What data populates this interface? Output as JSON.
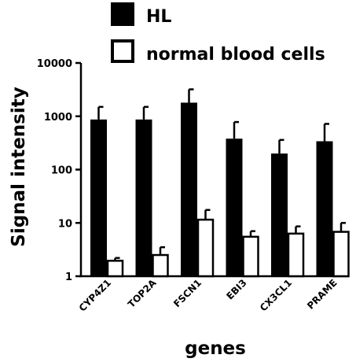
{
  "chart_data": {
    "type": "bar",
    "title": "",
    "xlabel": "genes",
    "ylabel": "Signal intensity",
    "yscale": "log",
    "ylim": [
      1,
      10000
    ],
    "y_ticks": [
      1,
      10,
      100,
      1000,
      10000
    ],
    "y_tick_labels": [
      "1",
      "10",
      "100",
      "1000",
      "10000"
    ],
    "grid": false,
    "legend_position": "top-center",
    "categories": [
      "CYP4Z1",
      "TOP2A",
      "FSCN1",
      "EBI3",
      "CX3CL1",
      "PRAME"
    ],
    "series": [
      {
        "name": "HL",
        "color": "#000000",
        "values": [
          870,
          870,
          1800,
          380,
          200,
          340
        ],
        "error_upper": [
          1500,
          1500,
          3200,
          780,
          360,
          720
        ]
      },
      {
        "name": "normal blood cells",
        "color": "#ffffff",
        "values": [
          1.95,
          2.5,
          11.5,
          5.5,
          6.3,
          6.8
        ],
        "error_upper": [
          2.2,
          3.5,
          17.5,
          7.0,
          8.6,
          10.0
        ]
      }
    ]
  }
}
